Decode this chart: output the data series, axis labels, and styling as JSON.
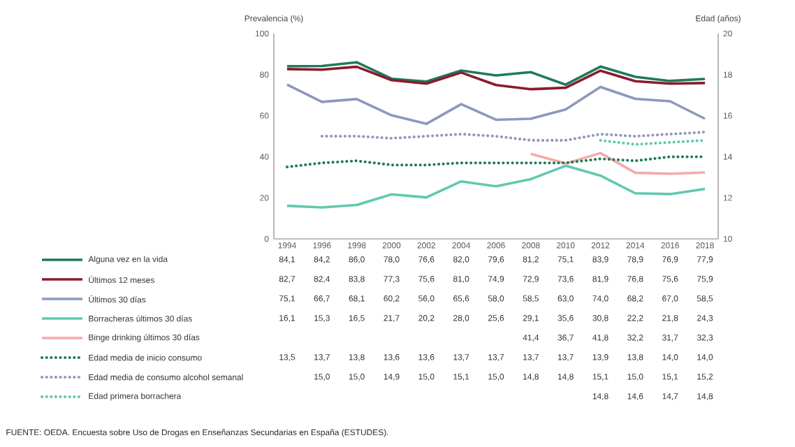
{
  "chart_data": {
    "type": "line",
    "ylabel": "Prevalencia (%)",
    "y2label": "Edad (años)",
    "categories": [
      "1994",
      "1996",
      "1998",
      "2000",
      "2002",
      "2004",
      "2006",
      "2008",
      "2010",
      "2012",
      "2014",
      "2016",
      "2018"
    ],
    "series": [
      {
        "name": "Alguna vez en la vida",
        "color": "#1f7a5c",
        "line_style": "solid",
        "values": [
          84.1,
          84.2,
          86.0,
          78.0,
          76.6,
          82.0,
          79.6,
          81.2,
          75.1,
          83.9,
          78.9,
          76.9,
          77.9
        ],
        "value_labels": [
          "84,1",
          "84,2",
          "86,0",
          "78,0",
          "76,6",
          "82,0",
          "79,6",
          "81,2",
          "75,1",
          "83,9",
          "78,9",
          "76,9",
          "77,9"
        ]
      },
      {
        "name": "Últimos 12 meses",
        "color": "#8b1a2b",
        "line_style": "solid",
        "values": [
          82.7,
          82.4,
          83.8,
          77.3,
          75.6,
          81.0,
          74.9,
          72.9,
          73.6,
          81.9,
          76.8,
          75.6,
          75.9
        ],
        "value_labels": [
          "82,7",
          "82,4",
          "83,8",
          "77,3",
          "75,6",
          "81,0",
          "74,9",
          "72,9",
          "73,6",
          "81,9",
          "76,8",
          "75,6",
          "75,9"
        ]
      },
      {
        "name": "Últimos 30 días",
        "color": "#8e97bd",
        "line_style": "solid",
        "values": [
          75.1,
          66.7,
          68.1,
          60.2,
          56.0,
          65.6,
          58.0,
          58.5,
          63.0,
          74.0,
          68.2,
          67.0,
          58.5
        ],
        "value_labels": [
          "75,1",
          "66,7",
          "68,1",
          "60,2",
          "56,0",
          "65,6",
          "58,0",
          "58,5",
          "63,0",
          "74,0",
          "68,2",
          "67,0",
          "58,5"
        ]
      },
      {
        "name": "Borracheras últimos 30 días",
        "color": "#5fc9b0",
        "line_style": "solid",
        "values": [
          16.1,
          15.3,
          16.5,
          21.7,
          20.2,
          28.0,
          25.6,
          29.1,
          35.6,
          30.8,
          22.2,
          21.8,
          24.3
        ],
        "value_labels": [
          "16,1",
          "15,3",
          "16,5",
          "21,7",
          "20,2",
          "28,0",
          "25,6",
          "29,1",
          "35,6",
          "30,8",
          "22,2",
          "21,8",
          "24,3"
        ]
      },
      {
        "name": "Binge drinking últimos 30 días",
        "color": "#f4aaa8",
        "line_style": "solid",
        "values": [
          null,
          null,
          null,
          null,
          null,
          null,
          null,
          41.4,
          36.7,
          41.8,
          32.2,
          31.7,
          32.3
        ],
        "value_labels": [
          null,
          null,
          null,
          null,
          null,
          null,
          null,
          "41,4",
          "36,7",
          "41,8",
          "32,2",
          "31,7",
          "32,3"
        ]
      },
      {
        "name": "Edad media de inicio consumo",
        "color": "#1f7a5c",
        "line_style": "dotted",
        "axis": "y2",
        "values": [
          13.5,
          13.7,
          13.8,
          13.6,
          13.6,
          13.7,
          13.7,
          13.7,
          13.7,
          13.9,
          13.8,
          14.0,
          14.0
        ],
        "value_labels": [
          "13,5",
          "13,7",
          "13,8",
          "13,6",
          "13,6",
          "13,7",
          "13,7",
          "13,7",
          "13,7",
          "13,9",
          "13,8",
          "14,0",
          "14,0"
        ]
      },
      {
        "name": "Edad media de consumo alcohol semanal",
        "color": "#8e97bd",
        "line_style": "dotted",
        "axis": "y2",
        "values": [
          null,
          15.0,
          15.0,
          14.9,
          15.0,
          15.1,
          15.0,
          14.8,
          14.8,
          15.1,
          15.0,
          15.1,
          15.2
        ],
        "value_labels": [
          null,
          "15,0",
          "15,0",
          "14,9",
          "15,0",
          "15,1",
          "15,0",
          "14,8",
          "14,8",
          "15,1",
          "15,0",
          "15,1",
          "15,2"
        ]
      },
      {
        "name": "Edad primera borrachera",
        "color": "#5fc9b0",
        "line_style": "dotted",
        "axis": "y2",
        "values": [
          null,
          null,
          null,
          null,
          null,
          null,
          null,
          null,
          null,
          14.8,
          14.6,
          14.7,
          14.8
        ],
        "value_labels": [
          null,
          null,
          null,
          null,
          null,
          null,
          null,
          null,
          null,
          "14,8",
          "14,6",
          "14,7",
          "14,8"
        ]
      }
    ],
    "ylim": [
      0,
      100
    ],
    "yticks": [
      0,
      20,
      40,
      60,
      80,
      100
    ],
    "y2lim": [
      10,
      20
    ],
    "y2ticks": [
      10,
      12,
      14,
      16,
      18,
      20
    ],
    "legend": "left",
    "grid": false,
    "marker": "none",
    "annotations": [
      "FUENTE: OEDA. Encuesta sobre Uso de Drogas en Enseñanzas Secundarias en España (ESTUDES)."
    ]
  }
}
